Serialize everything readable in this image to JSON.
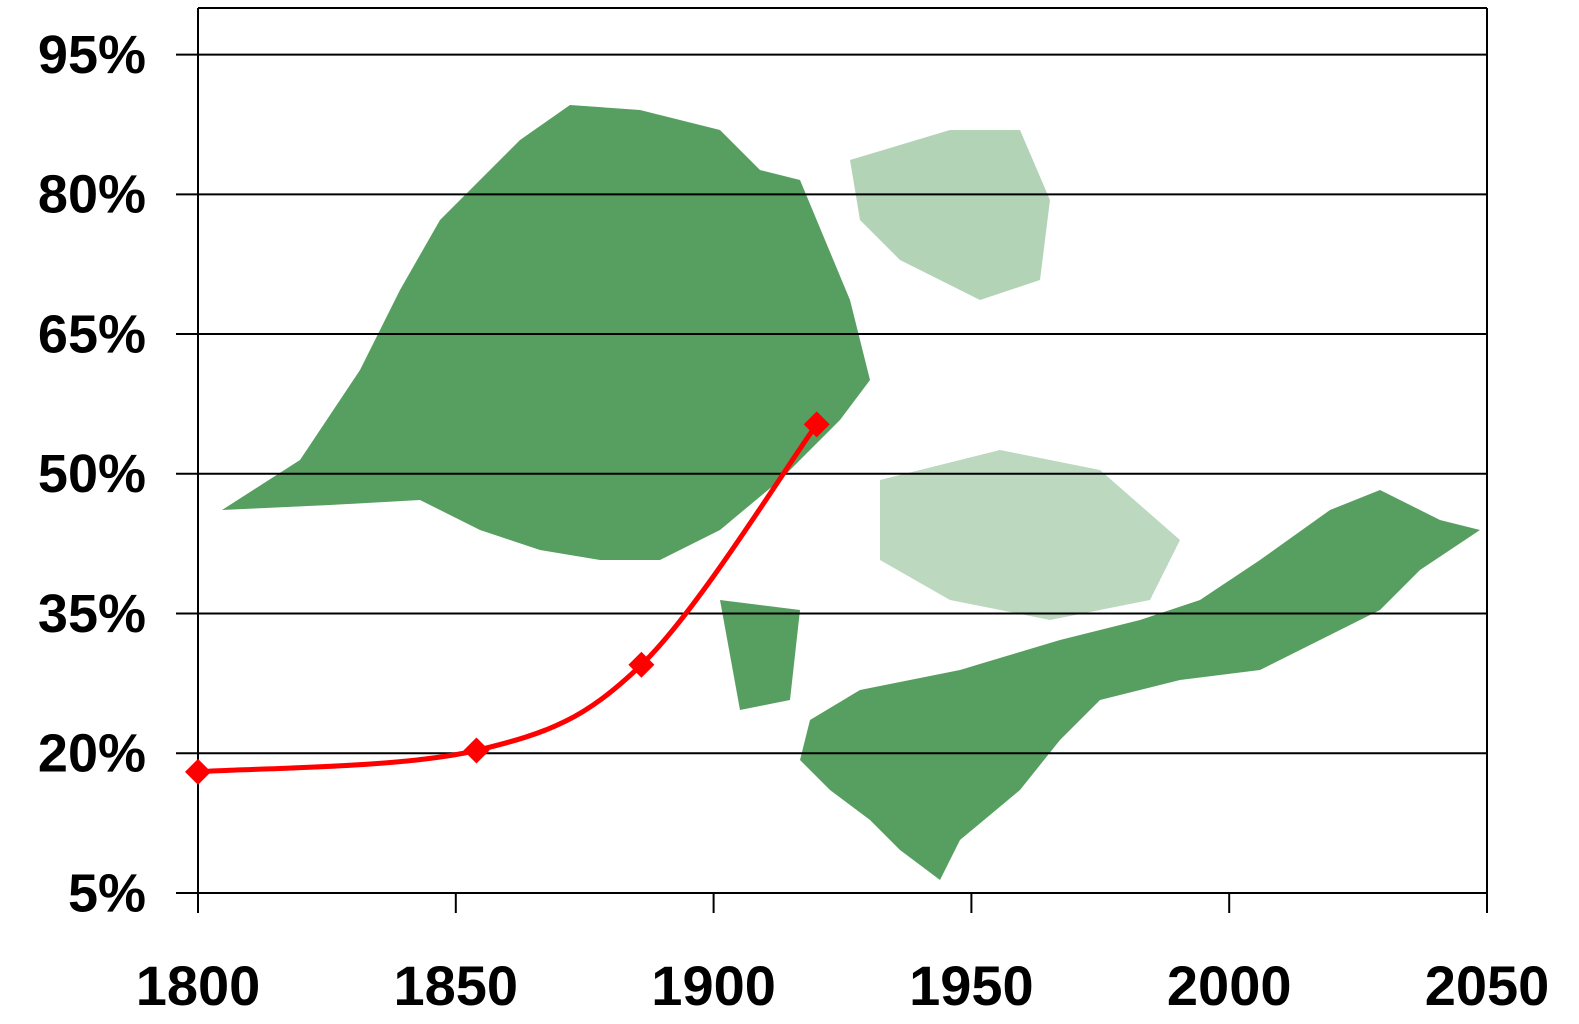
{
  "chart_data": {
    "type": "line",
    "x": [
      1800,
      1854,
      1886,
      1920
    ],
    "series": [
      {
        "color": "#ff0000",
        "values": [
          18,
          20.3,
          29.5,
          55.3
        ]
      }
    ],
    "xlim": [
      1800,
      2050
    ],
    "xticks": [
      1800,
      1850,
      1900,
      1950,
      2000,
      2050
    ],
    "ylim": [
      5,
      100
    ],
    "yticks": [
      {
        "value": 5,
        "label": "5%"
      },
      {
        "value": 20,
        "label": "20%"
      },
      {
        "value": 35,
        "label": "35%"
      },
      {
        "value": 50,
        "label": "50%"
      },
      {
        "value": 65,
        "label": "65%"
      },
      {
        "value": 80,
        "label": "80%"
      },
      {
        "value": 95,
        "label": "95%"
      }
    ],
    "grid": true
  }
}
